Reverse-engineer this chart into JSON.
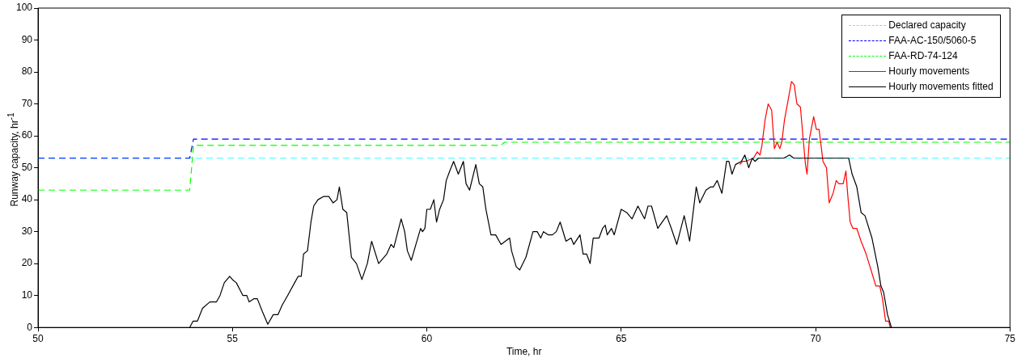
{
  "chart_data": {
    "type": "line",
    "xlabel": "Time, hr",
    "ylabel": "Runway capacity, hr$^{-1}$",
    "xlim": [
      50,
      75
    ],
    "xticks": [
      50,
      55,
      60,
      65,
      70,
      75
    ],
    "ylim": [
      0,
      100
    ],
    "yticks": [
      0,
      10,
      20,
      30,
      40,
      50,
      60,
      70,
      80,
      90,
      100
    ],
    "grid": false,
    "legend": "top right",
    "marker": "none",
    "series": [
      {
        "name": "Declared capacity",
        "color": "#33ffff",
        "line_style": "dashed",
        "x": [
          50,
          75
        ],
        "values": [
          53,
          53
        ]
      },
      {
        "name": "FAA-AC-150/5060-5",
        "color": "#0000ff",
        "line_style": "dashed",
        "x": [
          50,
          53.9,
          54.0,
          75
        ],
        "values": [
          53,
          53,
          59,
          59
        ]
      },
      {
        "name": "FAA-RD-74-124",
        "color": "#00ff00",
        "line_style": "dashed",
        "x": [
          50,
          53.9,
          54.0,
          61.9,
          62.0,
          75
        ],
        "values": [
          43,
          43,
          57,
          57,
          58,
          58
        ]
      },
      {
        "name": "Hourly movements",
        "color": "#ff0000",
        "line_style": "solid",
        "x": [
          68.05,
          68.12,
          68.19,
          68.4,
          68.5,
          68.57,
          68.62,
          68.7,
          68.78,
          68.87,
          68.94,
          69.01,
          69.08,
          69.13,
          69.2,
          69.29,
          69.38,
          69.45,
          69.52,
          69.61,
          69.68,
          69.74,
          69.78,
          69.84,
          69.95,
          70.02,
          70.09,
          70.19,
          70.28,
          70.35,
          70.45,
          70.53,
          70.6,
          70.71,
          70.78,
          70.83,
          70.89,
          70.96,
          71.06,
          71.17,
          71.3,
          71.45,
          71.55,
          71.65,
          71.72,
          71.8,
          71.88,
          71.92
        ],
        "values": [
          51,
          52,
          52,
          53,
          55,
          54,
          57,
          65,
          70,
          68,
          56,
          58,
          56,
          58,
          65,
          71,
          77,
          76,
          70,
          69,
          59,
          51,
          48,
          59,
          66,
          62,
          62,
          52,
          50,
          39,
          42,
          46,
          45,
          45,
          49,
          41,
          33,
          31,
          31,
          27,
          23,
          17,
          13,
          13,
          9,
          2,
          2,
          0
        ]
      },
      {
        "name": "Hourly movements fitted",
        "color": "#000000",
        "line_style": "solid",
        "x": [
          53.9,
          53.99,
          54.1,
          54.23,
          54.42,
          54.59,
          54.68,
          54.79,
          54.93,
          55.0,
          55.1,
          55.27,
          55.37,
          55.43,
          55.55,
          55.64,
          55.77,
          55.91,
          56.05,
          56.17,
          56.28,
          56.42,
          56.6,
          56.69,
          56.77,
          56.83,
          56.93,
          57.02,
          57.09,
          57.2,
          57.34,
          57.48,
          57.59,
          57.69,
          57.75,
          57.84,
          57.94,
          58.06,
          58.19,
          58.33,
          58.47,
          58.58,
          58.76,
          58.97,
          59.08,
          59.15,
          59.34,
          59.43,
          59.5,
          59.6,
          59.72,
          59.84,
          59.89,
          59.95,
          60.0,
          60.09,
          60.18,
          60.25,
          60.33,
          60.43,
          60.5,
          60.59,
          60.69,
          60.81,
          60.94,
          61.01,
          61.1,
          61.26,
          61.35,
          61.44,
          61.52,
          61.65,
          61.77,
          61.91,
          62.02,
          62.13,
          62.18,
          62.3,
          62.39,
          62.55,
          62.73,
          62.84,
          62.93,
          63.0,
          63.12,
          63.23,
          63.33,
          63.43,
          63.58,
          63.71,
          63.78,
          63.94,
          64.02,
          64.11,
          64.2,
          64.28,
          64.43,
          64.52,
          64.59,
          64.64,
          64.75,
          64.82,
          65.0,
          65.14,
          65.28,
          65.43,
          65.6,
          65.69,
          65.78,
          65.94,
          66.17,
          66.29,
          66.43,
          66.62,
          66.76,
          66.93,
          67.02,
          67.18,
          67.3,
          67.37,
          67.47,
          67.59,
          67.71,
          67.77,
          67.85,
          67.94,
          68.09,
          68.18,
          68.28,
          68.37,
          68.44,
          68.53,
          69.18,
          69.33,
          69.44,
          70.85,
          70.94,
          71.06,
          71.17,
          71.27,
          71.45,
          71.5,
          71.6,
          71.68,
          71.75,
          71.85,
          71.95
        ],
        "values": [
          0,
          2,
          2,
          6,
          8,
          8,
          10,
          14,
          16,
          15,
          14,
          10,
          10,
          8,
          9,
          9,
          5,
          1,
          4,
          4,
          7,
          10,
          14,
          16,
          16,
          23,
          24,
          33,
          38,
          40,
          41,
          41,
          39,
          40,
          44,
          37,
          36,
          22,
          20,
          15,
          20,
          27,
          20,
          23,
          26,
          25,
          34,
          30,
          24,
          21,
          26,
          31,
          30,
          31,
          37,
          37,
          40,
          33,
          37,
          40,
          46,
          49,
          52,
          48,
          52,
          45,
          43,
          51,
          45,
          44,
          37,
          29,
          29,
          26,
          27,
          28,
          24,
          19,
          18,
          22,
          30,
          30,
          28,
          30,
          29,
          29,
          30,
          33,
          27,
          28,
          26,
          29,
          23,
          23,
          20,
          28,
          28,
          31,
          32,
          29,
          31,
          29,
          37,
          36,
          34,
          38,
          34,
          38,
          38,
          31,
          35,
          31,
          26,
          35,
          27,
          44,
          39,
          43,
          44,
          44,
          46,
          42,
          52,
          52,
          48,
          51,
          52,
          54,
          50,
          53,
          52,
          53,
          53,
          54,
          53,
          53,
          48,
          44,
          36,
          35,
          28,
          25,
          19,
          13,
          11,
          4,
          0
        ]
      }
    ]
  }
}
